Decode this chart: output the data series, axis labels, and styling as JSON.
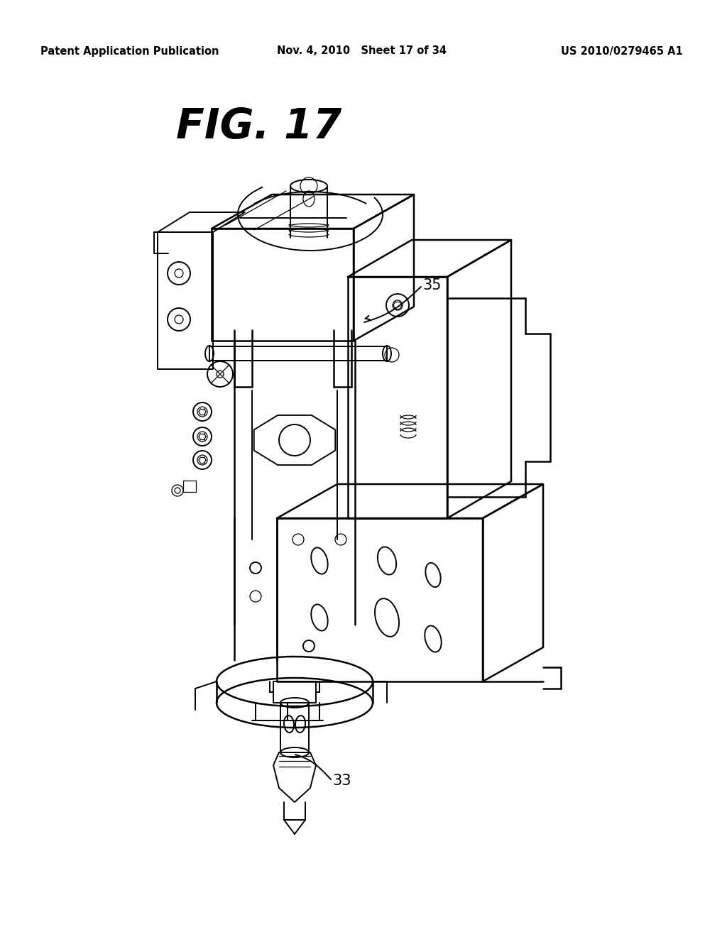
{
  "background_color": "#ffffff",
  "header_left": "Patent Application Publication",
  "header_center": "Nov. 4, 2010   Sheet 17 of 34",
  "header_right": "US 2010/0279465 A1",
  "fig_title": "FIG. 17",
  "label_33": "33",
  "label_35": "35",
  "header_fontsize": 10.5,
  "title_fontsize": 42,
  "label_fontsize": 15,
  "line_color": "#000000",
  "lw_main": 1.4,
  "lw_thin": 0.9,
  "lw_thick": 1.8
}
